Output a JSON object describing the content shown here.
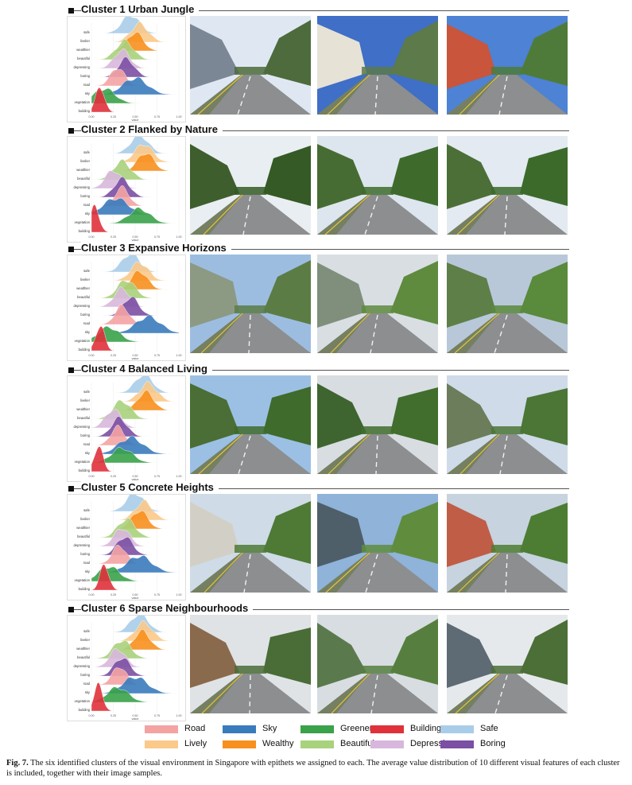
{
  "features": [
    "safe",
    "livelier",
    "wealthier",
    "beautiful",
    "depressing",
    "boring",
    "road",
    "sky",
    "vegetation",
    "building"
  ],
  "ridge_axis": {
    "xlabel": "value"
  },
  "colors": {
    "Road": "#f4a3a3",
    "Lively": "#fbc98a",
    "Sky": "#3a7bbd",
    "Wealthy": "#f7901e",
    "Greenery": "#3aa24a",
    "Beautiful": "#a9d27c",
    "Building": "#e0313b",
    "Depressing": "#d8b7dc",
    "Safe": "#a9cde8",
    "Boring": "#7b4fa3"
  },
  "clusters": [
    {
      "label": "Cluster 1  Urban Jungle"
    },
    {
      "label": "Cluster 2  Flanked by Nature"
    },
    {
      "label": "Cluster 3  Expansive Horizons"
    },
    {
      "label": "Cluster 4  Balanced Living"
    },
    {
      "label": "Cluster 5  Concrete Heights"
    },
    {
      "label": "Cluster 6  Sparse Neighbourhoods"
    }
  ],
  "legend": [
    {
      "label": "Road",
      "color": "#f4a3a3"
    },
    {
      "label": "Sky",
      "color": "#3a7bbd"
    },
    {
      "label": "Greenery",
      "color": "#3aa24a"
    },
    {
      "label": "Building",
      "color": "#e0313b"
    },
    {
      "label": "Safe",
      "color": "#a9cde8"
    },
    {
      "label": "Lively",
      "color": "#fbc98a"
    },
    {
      "label": "Wealthy",
      "color": "#f7901e"
    },
    {
      "label": "Beautiful",
      "color": "#a9d27c"
    },
    {
      "label": "Depressing",
      "color": "#d8b7dc"
    },
    {
      "label": "Boring",
      "color": "#7b4fa3"
    }
  ],
  "caption": {
    "prefix": "Fig. 7.",
    "text": " The six identified clusters of the visual environment in Singapore with epithets we assigned to each. The average value distribution of 10 different visual features of each cluster is included, together with their image samples."
  }
}
